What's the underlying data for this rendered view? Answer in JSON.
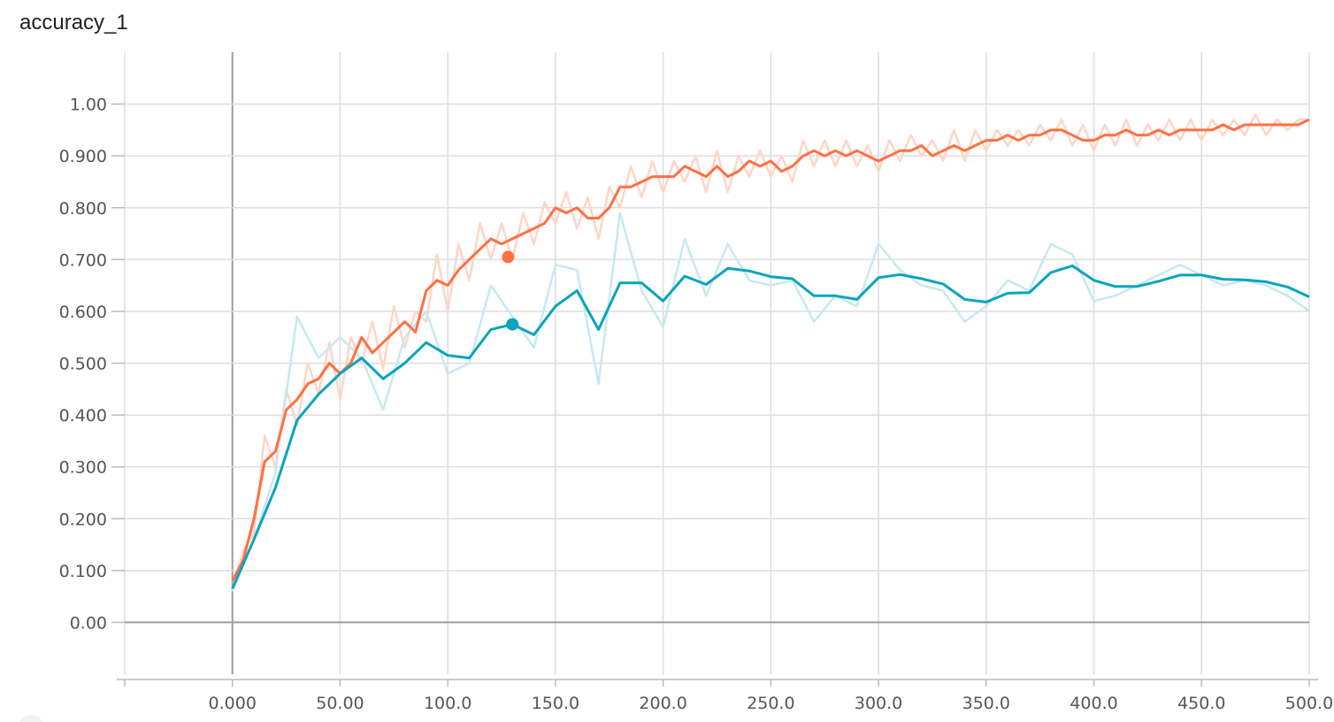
{
  "chart_data": {
    "type": "line",
    "title": "accuracy_1",
    "xlim": [
      -50,
      500
    ],
    "ylim": [
      -0.1,
      1.1
    ],
    "grid": true,
    "x_ticks": [
      0,
      50,
      100,
      150,
      200,
      250,
      300,
      350,
      400,
      450,
      500
    ],
    "x_tick_labels": [
      "0.000",
      "50.00",
      "100.0",
      "150.0",
      "200.0",
      "250.0",
      "300.0",
      "350.0",
      "400.0",
      "450.0",
      "500.0"
    ],
    "y_ticks": [
      0,
      0.1,
      0.2,
      0.3,
      0.4,
      0.5,
      0.6,
      0.7,
      0.8,
      0.9,
      1.0
    ],
    "y_tick_labels": [
      "0.00",
      "0.100",
      "0.200",
      "0.300",
      "0.400",
      "0.500",
      "0.600",
      "0.700",
      "0.800",
      "0.900",
      "1.00"
    ],
    "series": [
      {
        "color": "#ff7043",
        "raw_color": "#ffd5c6",
        "highlight_x": 128,
        "highlight_y": 0.705,
        "x": [
          0,
          5,
          10,
          15,
          20,
          25,
          30,
          35,
          40,
          45,
          50,
          55,
          60,
          65,
          70,
          75,
          80,
          85,
          90,
          95,
          100,
          105,
          110,
          115,
          120,
          125,
          130,
          135,
          140,
          145,
          150,
          155,
          160,
          165,
          170,
          175,
          180,
          185,
          190,
          195,
          200,
          205,
          210,
          215,
          220,
          225,
          230,
          235,
          240,
          245,
          250,
          255,
          260,
          265,
          270,
          275,
          280,
          285,
          290,
          295,
          300,
          305,
          310,
          315,
          320,
          325,
          330,
          335,
          340,
          345,
          350,
          355,
          360,
          365,
          370,
          375,
          380,
          385,
          390,
          395,
          400,
          405,
          410,
          415,
          420,
          425,
          430,
          435,
          440,
          445,
          450,
          455,
          460,
          465,
          470,
          475,
          480,
          485,
          490,
          495,
          500
        ],
        "values": [
          0.08,
          0.12,
          0.2,
          0.31,
          0.33,
          0.41,
          0.43,
          0.46,
          0.47,
          0.5,
          0.48,
          0.5,
          0.55,
          0.52,
          0.54,
          0.56,
          0.58,
          0.56,
          0.64,
          0.66,
          0.65,
          0.68,
          0.7,
          0.72,
          0.74,
          0.73,
          0.74,
          0.75,
          0.76,
          0.77,
          0.8,
          0.79,
          0.8,
          0.78,
          0.78,
          0.8,
          0.84,
          0.84,
          0.85,
          0.86,
          0.86,
          0.86,
          0.88,
          0.87,
          0.86,
          0.88,
          0.86,
          0.87,
          0.89,
          0.88,
          0.89,
          0.87,
          0.88,
          0.9,
          0.91,
          0.9,
          0.91,
          0.9,
          0.91,
          0.9,
          0.89,
          0.9,
          0.91,
          0.91,
          0.92,
          0.9,
          0.91,
          0.92,
          0.91,
          0.92,
          0.93,
          0.93,
          0.94,
          0.93,
          0.94,
          0.94,
          0.95,
          0.95,
          0.94,
          0.93,
          0.93,
          0.94,
          0.94,
          0.95,
          0.94,
          0.94,
          0.95,
          0.94,
          0.95,
          0.95,
          0.95,
          0.95,
          0.96,
          0.95,
          0.96,
          0.96,
          0.96,
          0.96,
          0.96,
          0.96,
          0.97
        ],
        "raw_values": [
          0.06,
          0.14,
          0.17,
          0.36,
          0.3,
          0.45,
          0.38,
          0.5,
          0.44,
          0.54,
          0.43,
          0.55,
          0.5,
          0.58,
          0.49,
          0.61,
          0.53,
          0.6,
          0.58,
          0.71,
          0.6,
          0.73,
          0.66,
          0.77,
          0.7,
          0.77,
          0.7,
          0.79,
          0.73,
          0.81,
          0.77,
          0.83,
          0.76,
          0.82,
          0.74,
          0.84,
          0.8,
          0.88,
          0.82,
          0.89,
          0.83,
          0.89,
          0.85,
          0.9,
          0.83,
          0.91,
          0.83,
          0.9,
          0.86,
          0.91,
          0.86,
          0.9,
          0.85,
          0.93,
          0.88,
          0.93,
          0.88,
          0.93,
          0.88,
          0.92,
          0.87,
          0.93,
          0.89,
          0.94,
          0.9,
          0.93,
          0.89,
          0.95,
          0.89,
          0.95,
          0.91,
          0.95,
          0.92,
          0.95,
          0.92,
          0.96,
          0.93,
          0.97,
          0.92,
          0.96,
          0.91,
          0.96,
          0.92,
          0.97,
          0.92,
          0.96,
          0.93,
          0.97,
          0.93,
          0.97,
          0.93,
          0.97,
          0.94,
          0.97,
          0.94,
          0.98,
          0.94,
          0.97,
          0.95,
          0.97,
          0.97
        ]
      },
      {
        "color": "#0aa4bd",
        "raw_color": "#c6e9f0",
        "highlight_x": 130,
        "highlight_y": 0.575,
        "x": [
          0,
          10,
          20,
          30,
          40,
          50,
          60,
          70,
          80,
          90,
          100,
          110,
          120,
          130,
          140,
          150,
          160,
          170,
          180,
          190,
          200,
          210,
          220,
          230,
          240,
          250,
          260,
          270,
          280,
          290,
          300,
          310,
          320,
          330,
          340,
          350,
          360,
          370,
          380,
          390,
          400,
          410,
          420,
          430,
          440,
          450,
          460,
          470,
          480,
          490,
          500
        ],
        "values": [
          0.065,
          0.16,
          0.26,
          0.39,
          0.44,
          0.48,
          0.51,
          0.47,
          0.5,
          0.54,
          0.515,
          0.51,
          0.565,
          0.575,
          0.555,
          0.61,
          0.64,
          0.565,
          0.655,
          0.655,
          0.62,
          0.668,
          0.652,
          0.683,
          0.678,
          0.667,
          0.663,
          0.63,
          0.63,
          0.623,
          0.665,
          0.671,
          0.663,
          0.653,
          0.623,
          0.618,
          0.635,
          0.636,
          0.675,
          0.688,
          0.66,
          0.648,
          0.648,
          0.658,
          0.67,
          0.67,
          0.662,
          0.661,
          0.657,
          0.647,
          0.628
        ],
        "raw_values": [
          0.06,
          0.16,
          0.29,
          0.59,
          0.51,
          0.55,
          0.51,
          0.41,
          0.55,
          0.6,
          0.48,
          0.5,
          0.65,
          0.59,
          0.53,
          0.69,
          0.68,
          0.46,
          0.79,
          0.64,
          0.57,
          0.74,
          0.63,
          0.73,
          0.66,
          0.65,
          0.66,
          0.58,
          0.63,
          0.61,
          0.73,
          0.68,
          0.65,
          0.64,
          0.58,
          0.61,
          0.66,
          0.64,
          0.73,
          0.71,
          0.62,
          0.63,
          0.65,
          0.67,
          0.69,
          0.67,
          0.65,
          0.66,
          0.65,
          0.63,
          0.6
        ]
      }
    ]
  }
}
